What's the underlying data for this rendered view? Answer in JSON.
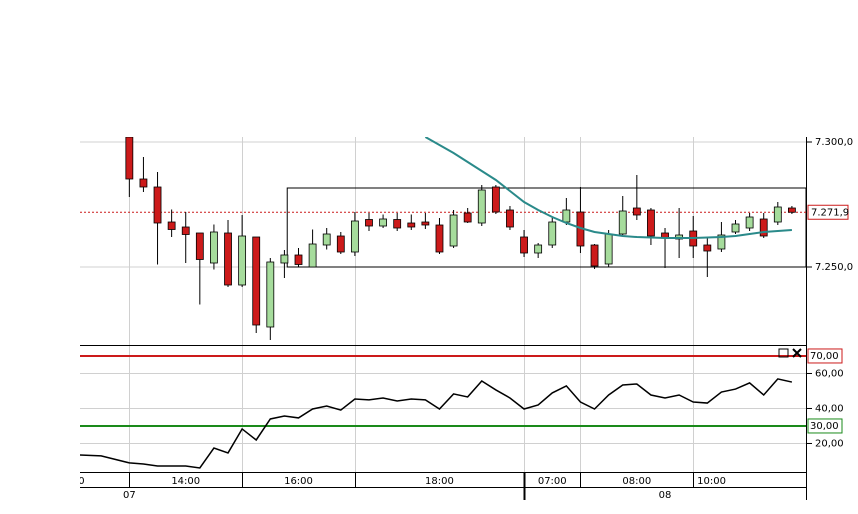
{
  "chart_data": {
    "type": "candlestick",
    "xlim": [
      -3.5,
      48
    ],
    "ylim": [
      7218.8,
      7302
    ],
    "yticks": [
      {
        "value": 7300,
        "label": "7.300,0"
      },
      {
        "value": 7250,
        "label": "7.250,0"
      }
    ],
    "last_price": {
      "value": 7271.9,
      "label": "7.271,9"
    },
    "xticks": [
      0,
      8,
      16,
      28,
      32,
      40
    ],
    "time_labels": [
      {
        "value": -3.4,
        "label": "0"
      },
      {
        "value": 4,
        "label": "14:00"
      },
      {
        "value": 12,
        "label": "16:00"
      },
      {
        "value": 22,
        "label": "18:00"
      },
      {
        "value": 30,
        "label": "07:00"
      },
      {
        "value": 36,
        "label": "08:00"
      },
      {
        "value": 41.3,
        "label": "10:00"
      }
    ],
    "date_labels": [
      {
        "value": 0,
        "label": "07"
      },
      {
        "value": 38,
        "label": "08"
      }
    ],
    "open": [
      7302,
      7285.2,
      7282,
      7268,
      7266,
      7263.6,
      7251.6,
      7263.6,
      7242.8,
      7262,
      7226,
      7251.6,
      7254.8,
      7250,
      7258.8,
      7262.4,
      7256,
      7269,
      7266.4,
      7269,
      7267.6,
      7268,
      7266.8,
      7258.4,
      7271.6,
      7267.6,
      7282,
      7272.8,
      7262,
      7255.6,
      7258.8,
      7268,
      7272,
      7258.8,
      7251.2,
      7263.2,
      7273.6,
      7272.8,
      7263.6,
      7261.2,
      7264.4,
      7258.8,
      7257.2,
      7264,
      7265.6,
      7269.2,
      7268,
      7273.6
    ],
    "high": [
      7302,
      7294,
      7288,
      7273,
      7272,
      7263.6,
      7267,
      7268.8,
      7270.8,
      7262,
      7253.6,
      7256.8,
      7257.6,
      7265,
      7265.6,
      7264,
      7272,
      7271.6,
      7271,
      7271.6,
      7271,
      7271.6,
      7269.6,
      7272.8,
      7273.6,
      7282.8,
      7282.8,
      7274.4,
      7264.8,
      7259.6,
      7269.6,
      7277.6,
      7282,
      7259.2,
      7264.8,
      7278.4,
      7286.8,
      7273.6,
      7265.6,
      7273.6,
      7270.4,
      7261.6,
      7268,
      7268.8,
      7271.6,
      7271.6,
      7276,
      7274.4
    ],
    "low": [
      7278,
      7280,
      7251,
      7262,
      7251.6,
      7235,
      7249,
      7242,
      7242,
      7223.6,
      7220.8,
      7245.6,
      7250,
      7250,
      7257,
      7255.2,
      7254.4,
      7264.4,
      7265.6,
      7264.4,
      7264.8,
      7265.2,
      7255.2,
      7257.6,
      7267.6,
      7266.4,
      7271.2,
      7264.8,
      7254,
      7253.6,
      7257.6,
      7266.8,
      7255.6,
      7249.2,
      7250,
      7262.8,
      7268.8,
      7258.8,
      7249.6,
      7253.6,
      7253.6,
      7246,
      7256,
      7263.2,
      7264.4,
      7261.6,
      7266.8,
      7271.2
    ],
    "close": [
      7285.2,
      7282,
      7267.6,
      7265,
      7263,
      7253,
      7264,
      7242.8,
      7262.4,
      7226.8,
      7252,
      7254.8,
      7251,
      7259.2,
      7263.2,
      7256,
      7268.4,
      7266.4,
      7269.2,
      7265.6,
      7266,
      7266.8,
      7256,
      7270.8,
      7268,
      7280.8,
      7272,
      7266,
      7255.6,
      7258.8,
      7268,
      7272.8,
      7258.4,
      7250.4,
      7263.2,
      7272.4,
      7270.8,
      7262.4,
      7261.6,
      7262.8,
      7258.4,
      7256.4,
      7262.8,
      7267.2,
      7270,
      7262.4,
      7274,
      7271.9
    ],
    "up_color": "#a6dc9c",
    "down_color": "#cc1a1a",
    "ma": {
      "color": "#2a8a8a",
      "x": [
        21,
        22,
        23,
        24,
        25,
        26,
        27,
        28,
        29,
        30,
        31,
        32,
        33,
        34,
        35,
        36,
        37,
        38,
        39,
        40,
        41,
        42,
        43,
        44,
        45,
        46,
        47
      ],
      "values": [
        7302,
        7298.8,
        7295.6,
        7292,
        7288.4,
        7284.8,
        7280.4,
        7276,
        7272.8,
        7270,
        7267.6,
        7265.6,
        7264,
        7263.2,
        7262.4,
        7262,
        7261.8,
        7261.6,
        7261.6,
        7261.6,
        7261.8,
        7262,
        7262.4,
        7263.2,
        7264,
        7264.4,
        7264.8
      ]
    },
    "range_box": {
      "start": 11.2,
      "high": 7281.6,
      "low": 7250
    },
    "rsi": {
      "ylim": [
        3.7,
        75.7
      ],
      "yticks": [
        {
          "value": 20,
          "label": "20,00"
        },
        {
          "value": 40,
          "label": "40,00"
        },
        {
          "value": 60,
          "label": "60,00"
        }
      ],
      "levels": [
        {
          "value": 70,
          "label": "70,00",
          "color": "#cc1a1a"
        },
        {
          "value": 30,
          "label": "30,00",
          "color": "#1a8a1a"
        }
      ],
      "x": [
        -3.5,
        -2,
        0,
        1,
        2,
        3,
        4,
        5,
        6,
        7,
        8,
        9,
        10,
        11,
        12,
        13,
        14,
        15,
        16,
        17,
        18,
        19,
        20,
        21,
        22,
        23,
        24,
        25,
        26,
        27,
        28,
        29,
        30,
        31,
        32,
        33,
        34,
        35,
        36,
        37,
        38,
        39,
        40,
        41,
        42,
        43,
        44,
        45,
        46,
        47
      ],
      "values": [
        13.4,
        12.9,
        8.9,
        8.3,
        7.1,
        7.1,
        7.1,
        6.0,
        17.4,
        14.6,
        28.3,
        22.0,
        34.0,
        35.7,
        34.6,
        39.7,
        41.4,
        39.1,
        45.4,
        44.9,
        46.0,
        44.3,
        45.4,
        44.9,
        39.7,
        48.3,
        46.6,
        55.7,
        50.6,
        46.0,
        39.7,
        42.0,
        48.9,
        52.9,
        43.7,
        39.7,
        47.7,
        53.4,
        54.0,
        47.7,
        46.0,
        47.7,
        43.7,
        43.1,
        49.4,
        51.1,
        54.6,
        47.7,
        56.9,
        55.1
      ]
    }
  }
}
